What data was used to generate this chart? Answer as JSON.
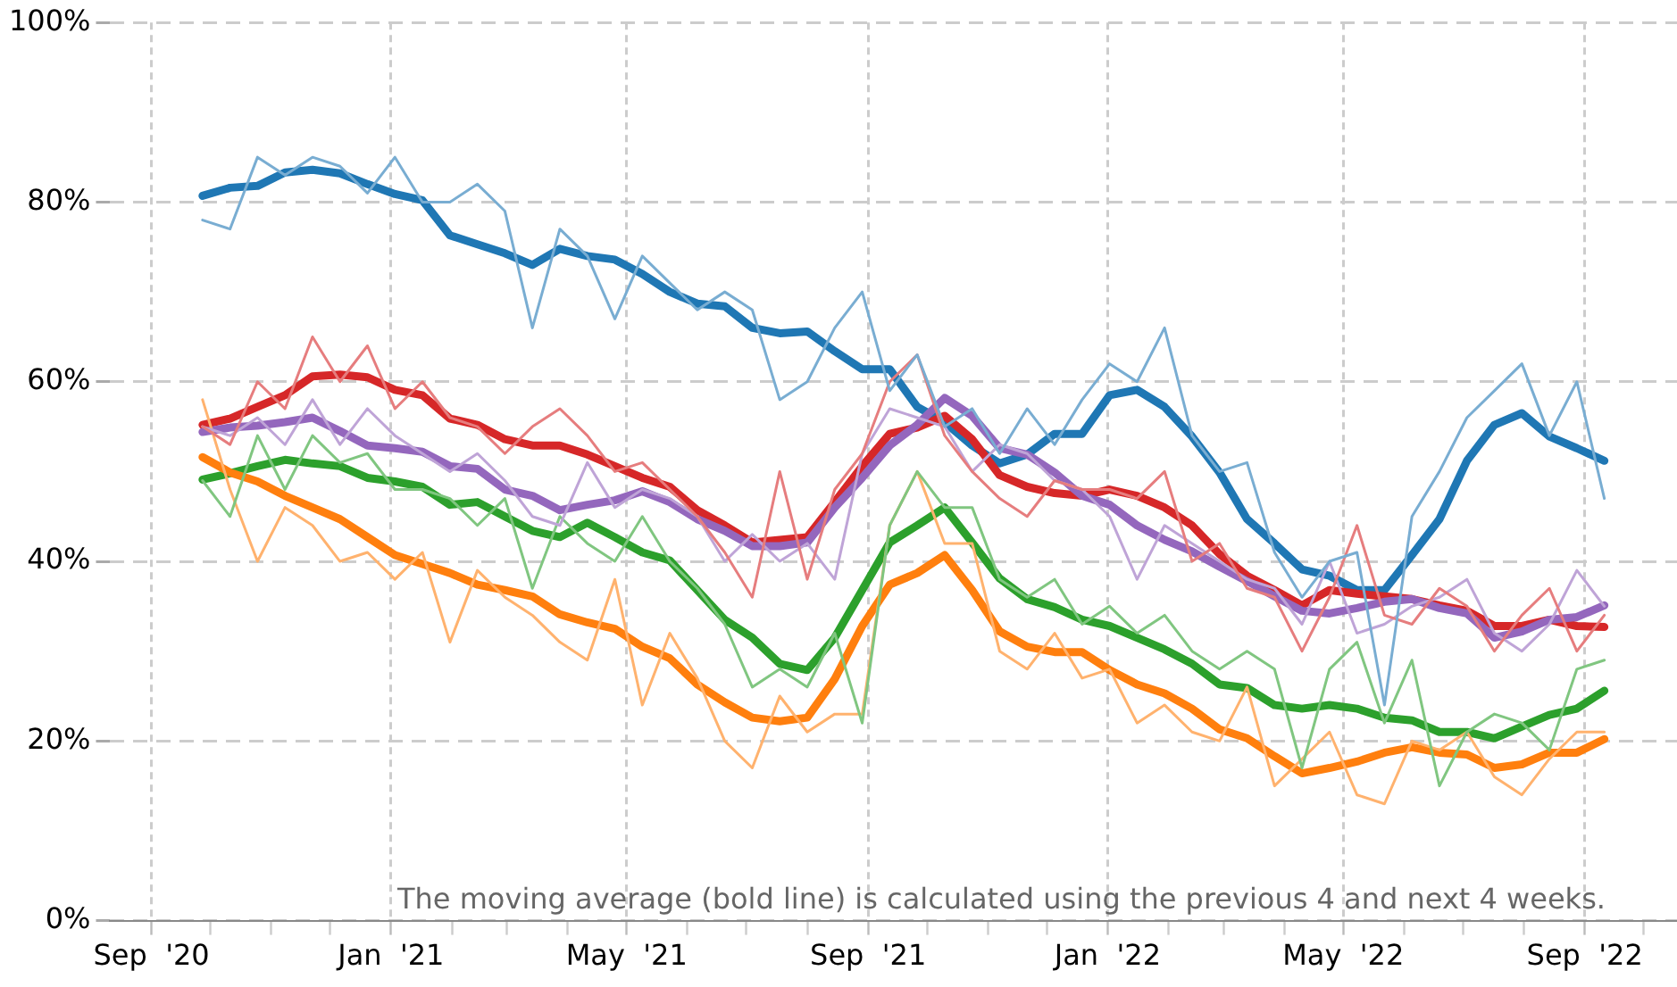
{
  "chart_data": {
    "type": "line",
    "x": [
      "2020-09-27",
      "2020-10-11",
      "2020-10-25",
      "2020-11-08",
      "2020-11-22",
      "2020-12-06",
      "2020-12-20",
      "2021-01-03",
      "2021-01-17",
      "2021-01-31",
      "2021-02-14",
      "2021-02-28",
      "2021-03-14",
      "2021-03-28",
      "2021-04-11",
      "2021-04-25",
      "2021-05-09",
      "2021-05-23",
      "2021-06-06",
      "2021-06-20",
      "2021-07-04",
      "2021-07-18",
      "2021-08-01",
      "2021-08-15",
      "2021-08-29",
      "2021-09-12",
      "2021-09-26",
      "2021-10-10",
      "2021-10-24",
      "2021-11-07",
      "2021-11-21",
      "2021-12-05",
      "2021-12-19",
      "2022-01-02",
      "2022-01-16",
      "2022-01-30",
      "2022-02-13",
      "2022-02-27",
      "2022-03-13",
      "2022-03-27",
      "2022-04-10",
      "2022-04-24",
      "2022-05-08",
      "2022-05-22",
      "2022-06-05",
      "2022-06-19",
      "2022-07-03",
      "2022-07-17",
      "2022-07-31",
      "2022-08-14",
      "2022-08-28",
      "2022-09-11"
    ],
    "series": [
      {
        "color": "#79add2",
        "values": [
          78,
          77,
          85,
          83,
          85,
          84,
          81,
          85,
          80,
          80,
          82,
          79,
          66,
          77,
          74,
          67,
          74,
          71,
          68,
          70,
          68,
          58,
          60,
          66,
          70,
          59,
          63,
          55,
          57,
          52,
          57,
          53,
          58,
          62,
          60,
          66,
          54,
          50,
          51,
          41,
          36,
          40,
          41,
          24,
          45,
          50,
          56,
          59,
          62,
          54,
          60,
          47
        ]
      },
      {
        "color": "#e67d7e",
        "values": [
          55,
          53,
          60,
          57,
          65,
          60,
          64,
          57,
          60,
          56,
          55,
          52,
          55,
          57,
          54,
          50,
          51,
          48,
          45,
          41,
          36,
          50,
          38,
          48,
          52,
          60,
          63,
          54,
          50,
          47,
          45,
          49,
          48,
          48,
          47,
          50,
          40,
          42,
          37,
          36,
          30,
          36,
          44,
          34,
          33,
          37,
          35,
          30,
          34,
          37,
          30,
          34
        ]
      },
      {
        "color": "#bfa4d7",
        "values": [
          55,
          54,
          56,
          53,
          58,
          53,
          57,
          54,
          52,
          50,
          52,
          49,
          45,
          44,
          51,
          46,
          48,
          47,
          45,
          40,
          43,
          40,
          42,
          38,
          52,
          57,
          56,
          55,
          50,
          53,
          52,
          49,
          48,
          45,
          38,
          44,
          42,
          40,
          38,
          37,
          33,
          40,
          32,
          33,
          35,
          36,
          38,
          32,
          30,
          33,
          39,
          35
        ]
      },
      {
        "color": "#80c680",
        "values": [
          49,
          45,
          54,
          48,
          54,
          51,
          52,
          48,
          48,
          47,
          44,
          47,
          37,
          45,
          42,
          40,
          45,
          40,
          37,
          33,
          26,
          28,
          26,
          32,
          22,
          44,
          50,
          46,
          46,
          38,
          36,
          38,
          33,
          35,
          32,
          34,
          30,
          28,
          30,
          28,
          17,
          28,
          31,
          22,
          29,
          15,
          21,
          23,
          22,
          19,
          28,
          29
        ]
      },
      {
        "color": "#ffb26e",
        "values": [
          58,
          48,
          40,
          46,
          44,
          40,
          41,
          38,
          41,
          31,
          39,
          36,
          34,
          31,
          29,
          38,
          24,
          32,
          27,
          20,
          17,
          25,
          21,
          23,
          23,
          44,
          50,
          42,
          42,
          30,
          28,
          32,
          27,
          28,
          22,
          24,
          21,
          20,
          26,
          15,
          18,
          21,
          14,
          13,
          20,
          19,
          21,
          16,
          14,
          18,
          21,
          21
        ]
      },
      {
        "color": "#ff7f0e",
        "values": [
          51.6,
          49.9,
          48.9,
          47.3,
          46,
          44.7,
          42.7,
          40.7,
          39.7,
          38.7,
          37.4,
          36.8,
          36.1,
          34.1,
          33.2,
          32.5,
          30.5,
          29.2,
          26.3,
          24.3,
          22.6,
          22.2,
          22.6,
          26.9,
          32.8,
          37.4,
          38.7,
          40.7,
          36.8,
          32.2,
          30.5,
          29.9,
          29.9,
          27.9,
          26.3,
          25.3,
          23.6,
          21.3,
          20.3,
          18.3,
          16.4,
          17,
          17.7,
          18.7,
          19.3,
          18.7,
          18.5,
          17,
          17.4,
          18.7,
          18.7,
          20.2
        ]
      },
      {
        "color": "#2ca02c",
        "values": [
          49.1,
          49.8,
          50.6,
          51.3,
          50.9,
          50.6,
          49.3,
          48.9,
          48.3,
          46.3,
          46.6,
          45,
          43.4,
          42.7,
          44.3,
          42.7,
          41,
          40.1,
          36.8,
          33.5,
          31.5,
          28.6,
          27.9,
          31.5,
          36.8,
          42.1,
          44,
          46,
          42.1,
          38.1,
          35.8,
          34.9,
          33.5,
          32.8,
          31.5,
          30.2,
          28.6,
          26.3,
          25.9,
          24,
          23.6,
          24,
          23.6,
          22.6,
          22.3,
          21,
          21,
          20.3,
          21.6,
          22.9,
          23.6,
          25.6
        ]
      },
      {
        "color": "#9467bd",
        "values": [
          54.4,
          54.9,
          55.1,
          55.5,
          56,
          54.5,
          52.9,
          52.6,
          52.2,
          50.6,
          50.3,
          48,
          47.3,
          45.7,
          46.3,
          46.8,
          47.8,
          46.6,
          44.7,
          43.4,
          41.7,
          41.7,
          42.1,
          46,
          49.3,
          52.9,
          55.2,
          58.2,
          56.2,
          52.6,
          51.9,
          49.9,
          47.3,
          46.3,
          44,
          42.4,
          41.1,
          39.4,
          37.8,
          36.1,
          34.5,
          34.2,
          34.8,
          35.5,
          35.8,
          34.8,
          34.2,
          31.5,
          32.2,
          33.5,
          33.8,
          35.1
        ]
      },
      {
        "color": "#d62728",
        "values": [
          55.2,
          55.9,
          57.2,
          58.5,
          60.6,
          60.8,
          60.5,
          59.1,
          58.5,
          55.9,
          55.2,
          53.6,
          52.9,
          52.9,
          51.9,
          50.6,
          49.3,
          48.3,
          45.7,
          44,
          42.1,
          42.4,
          42.7,
          46.6,
          50.6,
          54.2,
          54.9,
          56.2,
          53.6,
          49.6,
          48.3,
          47.6,
          47.3,
          48,
          47.3,
          46,
          44,
          40.8,
          38.4,
          36.8,
          35.1,
          36.8,
          36.4,
          36.1,
          35.8,
          35.1,
          34.5,
          32.8,
          32.8,
          33.5,
          32.8,
          32.7
        ]
      },
      {
        "color": "#1f77b4",
        "values": [
          80.7,
          81.6,
          81.8,
          83.3,
          83.6,
          83.2,
          82,
          80.9,
          80.2,
          76.3,
          75.3,
          74.3,
          73,
          74.8,
          74,
          73.6,
          72,
          70,
          68.7,
          68.4,
          66,
          65.4,
          65.6,
          63.4,
          61.4,
          61.4,
          57.2,
          55.5,
          52.9,
          50.9,
          51.9,
          54.2,
          54.2,
          58.5,
          59.1,
          57.2,
          53.9,
          49.9,
          44.7,
          42,
          39.1,
          38.4,
          36.8,
          36.8,
          40.7,
          44.7,
          51.2,
          55.2,
          56.5,
          53.9,
          52.6,
          51.2
        ]
      }
    ],
    "xlim": [
      "2020-08-11",
      "2022-10-18"
    ],
    "xticks": [
      {
        "value": "2020-09-01",
        "label": "Sep  '20"
      },
      {
        "value": "2020-10-01",
        "label": null
      },
      {
        "value": "2020-11-01",
        "label": null
      },
      {
        "value": "2020-12-01",
        "label": null
      },
      {
        "value": "2021-01-01",
        "label": "Jan  '21"
      },
      {
        "value": "2021-02-01",
        "label": null
      },
      {
        "value": "2021-03-01",
        "label": null
      },
      {
        "value": "2021-04-01",
        "label": null
      },
      {
        "value": "2021-05-01",
        "label": "May  '21"
      },
      {
        "value": "2021-06-01",
        "label": null
      },
      {
        "value": "2021-07-01",
        "label": null
      },
      {
        "value": "2021-08-01",
        "label": null
      },
      {
        "value": "2021-09-01",
        "label": "Sep  '21"
      },
      {
        "value": "2021-10-01",
        "label": null
      },
      {
        "value": "2021-11-01",
        "label": null
      },
      {
        "value": "2021-12-01",
        "label": null
      },
      {
        "value": "2022-01-01",
        "label": "Jan  '22"
      },
      {
        "value": "2022-02-01",
        "label": null
      },
      {
        "value": "2022-03-01",
        "label": null
      },
      {
        "value": "2022-04-01",
        "label": null
      },
      {
        "value": "2022-05-01",
        "label": "May  '22"
      },
      {
        "value": "2022-06-01",
        "label": null
      },
      {
        "value": "2022-07-01",
        "label": null
      },
      {
        "value": "2022-08-01",
        "label": null
      },
      {
        "value": "2022-09-01",
        "label": "Sep  '22"
      },
      {
        "value": "2022-10-01",
        "label": null
      }
    ],
    "ylim": [
      0,
      100
    ],
    "yticks": [
      {
        "value": 0,
        "label": "0%"
      },
      {
        "value": 20,
        "label": "20%"
      },
      {
        "value": 40,
        "label": "40%"
      },
      {
        "value": 60,
        "label": "60%"
      },
      {
        "value": 80,
        "label": "80%"
      },
      {
        "value": 100,
        "label": "100%"
      }
    ],
    "grid": true,
    "legend": false,
    "marker": "none",
    "line_style": "solid",
    "annotations": [
      "The moving average (bold line) is calculated using the previous 4 and next 4 weeks."
    ]
  }
}
